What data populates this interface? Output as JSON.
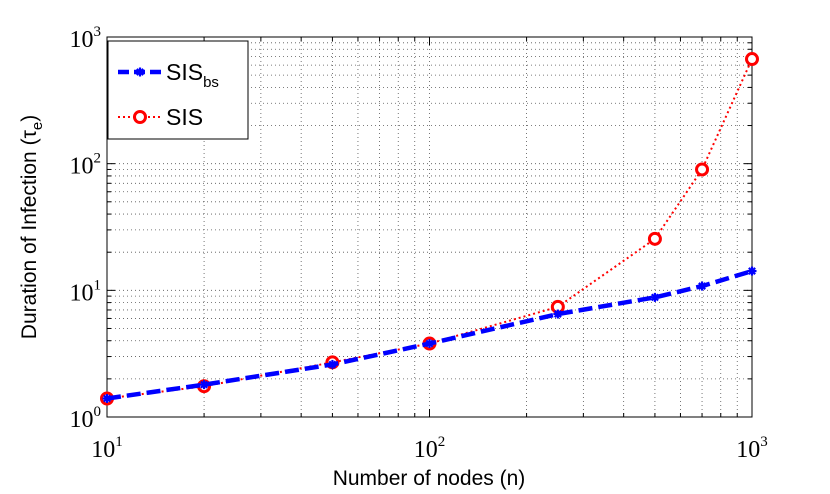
{
  "chart_data": {
    "type": "line",
    "xscale": "log",
    "yscale": "log",
    "xlim": [
      10,
      1000
    ],
    "ylim": [
      1,
      1000
    ],
    "x_ticks": [
      {
        "base": "10",
        "exp": "1"
      },
      {
        "base": "10",
        "exp": "2"
      },
      {
        "base": "10",
        "exp": "3"
      }
    ],
    "y_ticks": [
      {
        "base": "10",
        "exp": "0"
      },
      {
        "base": "10",
        "exp": "1"
      },
      {
        "base": "10",
        "exp": "2"
      },
      {
        "base": "10",
        "exp": "3"
      }
    ],
    "xlabel": "Number of nodes (n)",
    "ylabel": {
      "text": "Duration of Infection (τ",
      "sub": "e",
      "close": ")"
    },
    "grid": true,
    "legend_position": "top-left",
    "series": [
      {
        "name": "SIS",
        "name_sub": "bs",
        "color": "#0000ff",
        "line_style": "dashed",
        "marker": "asterisk",
        "x": [
          10,
          20,
          50,
          100,
          250,
          500,
          700,
          1000
        ],
        "y": [
          1.4,
          1.8,
          2.6,
          3.8,
          6.5,
          8.8,
          10.8,
          14.2
        ]
      },
      {
        "name": "SIS",
        "color": "#ff0000",
        "line_style": "dotted",
        "marker": "circle",
        "x": [
          10,
          20,
          50,
          100,
          250,
          500,
          700,
          1000
        ],
        "y": [
          1.4,
          1.75,
          2.7,
          3.8,
          7.4,
          25.5,
          90,
          670
        ]
      }
    ]
  }
}
